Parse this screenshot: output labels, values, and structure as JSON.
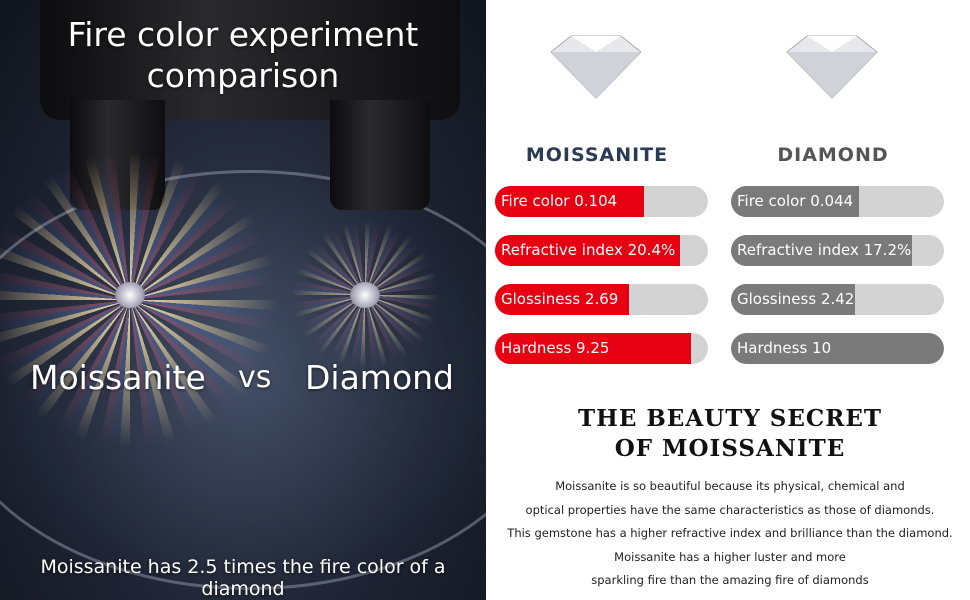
{
  "left": {
    "title_line1": "Fire color experiment",
    "title_line2": "comparison",
    "left_label": "Moissanite",
    "vs": "vs",
    "right_label": "Diamond",
    "caption": "Moissanite has 2.5 times the fire color of a diamond"
  },
  "right": {
    "colors": {
      "moissanite": "#e60012",
      "diamond": "#7a7a7a",
      "track": "#d3d3d3",
      "moissanite_label": "#2b3a55",
      "diamond_label": "#555555"
    },
    "moissanite": {
      "label": "MOISSANITE",
      "bars": [
        {
          "text": "Fire color 0.104",
          "fill": 0.7
        },
        {
          "text": "Refractive index 20.4%",
          "fill": 0.87
        },
        {
          "text": "Glossiness 2.69",
          "fill": 0.63
        },
        {
          "text": "Hardness 9.25",
          "fill": 0.92
        }
      ]
    },
    "diamond": {
      "label": "DIAMOND",
      "bars": [
        {
          "text": "Fire color 0.044",
          "fill": 0.6
        },
        {
          "text": "Refractive index 17.2%",
          "fill": 0.85
        },
        {
          "text": "Glossiness 2.42",
          "fill": 0.58
        },
        {
          "text": "Hardness 10",
          "fill": 1.0
        }
      ]
    },
    "heading_line1": "THE BEAUTY SECRET",
    "heading_line2": "OF MOISSANITE",
    "paragraph": [
      "Moissanite is so beautiful because its physical, chemical and",
      "optical properties have the same characteristics as those of diamonds.",
      "This gemstone has a higher refractive index and brilliance than the diamond.",
      "Moissanite has a higher luster and more",
      "sparkling fire than the amazing fire of diamonds"
    ]
  }
}
